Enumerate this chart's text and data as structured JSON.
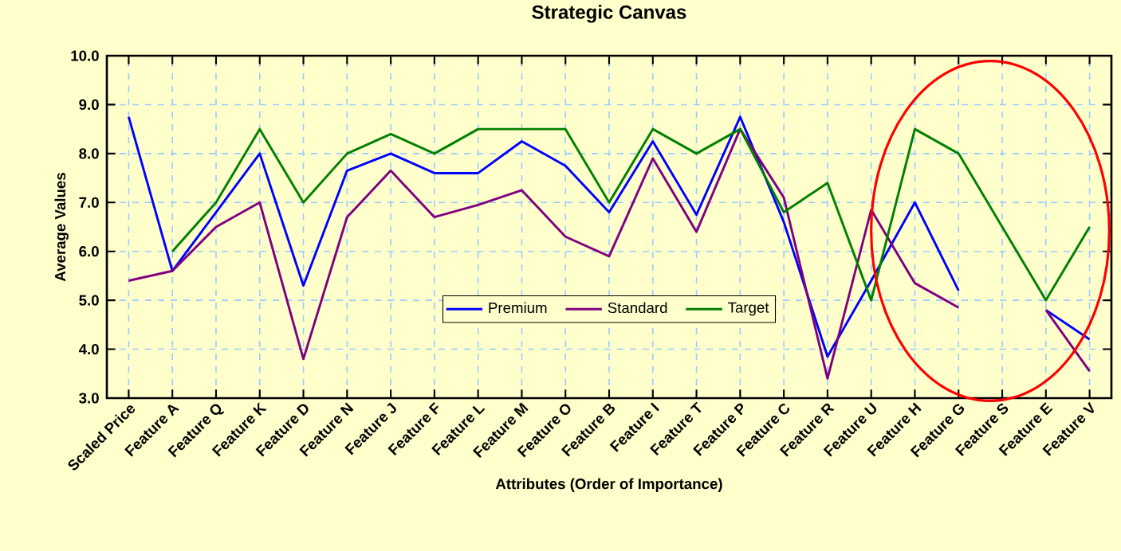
{
  "chart_data": {
    "type": "line",
    "title": "Strategic Canvas",
    "xlabel": "Attributes (Order of Importance)",
    "ylabel": "Average Values",
    "categories": [
      "Scaled Price",
      "Feature A",
      "Feature Q",
      "Feature K",
      "Feature D",
      "Feature N",
      "Feature J",
      "Feature F",
      "Feature L",
      "Feature M",
      "Feature O",
      "Feature B",
      "Feature I",
      "Feature T",
      "Feature P",
      "Feature C",
      "Feature R",
      "Feature U",
      "Feature H",
      "Feature G",
      "Feature S",
      "Feature E",
      "Feature V"
    ],
    "series": [
      {
        "name": "Premium",
        "color": "#0000ff",
        "values": [
          8.75,
          5.6,
          6.8,
          8.0,
          5.3,
          7.65,
          8.0,
          7.6,
          7.6,
          8.25,
          7.75,
          6.8,
          8.25,
          6.75,
          8.75,
          6.6,
          3.85,
          5.4,
          7.0,
          5.2,
          null,
          4.8,
          4.2
        ]
      },
      {
        "name": "Standard",
        "color": "#800080",
        "values": [
          5.4,
          5.6,
          6.5,
          7.0,
          3.8,
          6.7,
          7.65,
          6.7,
          6.95,
          7.25,
          6.3,
          5.9,
          7.9,
          6.4,
          8.5,
          7.1,
          3.4,
          6.85,
          5.35,
          4.85,
          null,
          4.8,
          3.55
        ]
      },
      {
        "name": "Target",
        "color": "#008000",
        "values": [
          null,
          6.0,
          7.0,
          8.5,
          7.0,
          8.0,
          8.4,
          8.0,
          8.5,
          8.5,
          8.5,
          7.0,
          8.5,
          8.0,
          8.5,
          6.8,
          7.4,
          5.0,
          8.5,
          8.0,
          6.5,
          5.0,
          6.5
        ]
      }
    ],
    "ylim": [
      3.0,
      10.0
    ],
    "yticks": [
      {
        "value": 3,
        "label": "3.0"
      },
      {
        "value": 4,
        "label": "4.0"
      },
      {
        "value": 5,
        "label": "5.0"
      },
      {
        "value": 6,
        "label": "6.0"
      },
      {
        "value": 7,
        "label": "7.0"
      },
      {
        "value": 8,
        "label": "8.0"
      },
      {
        "value": 9,
        "label": "9.0"
      },
      {
        "value": 10,
        "label": "10.0"
      }
    ],
    "grid": true,
    "legend": "bottom",
    "marker": "none",
    "line_style": "solid"
  }
}
